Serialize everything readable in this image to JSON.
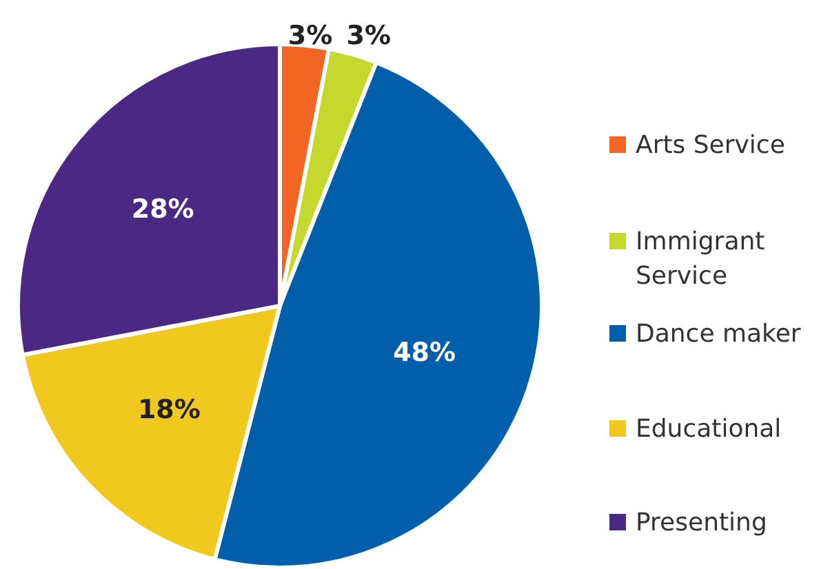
{
  "chart_data": {
    "type": "pie",
    "categories": [
      "Arts Service",
      "Immigrant Service",
      "Dance maker",
      "Educational",
      "Presenting"
    ],
    "values": [
      3,
      3,
      48,
      18,
      28
    ],
    "colors": [
      "#f26522",
      "#c4d82e",
      "#005eaa",
      "#f1c81e",
      "#4b2884"
    ],
    "value_labels": [
      "3%",
      "3%",
      "48%",
      "18%",
      "28%"
    ],
    "legend": "right"
  }
}
